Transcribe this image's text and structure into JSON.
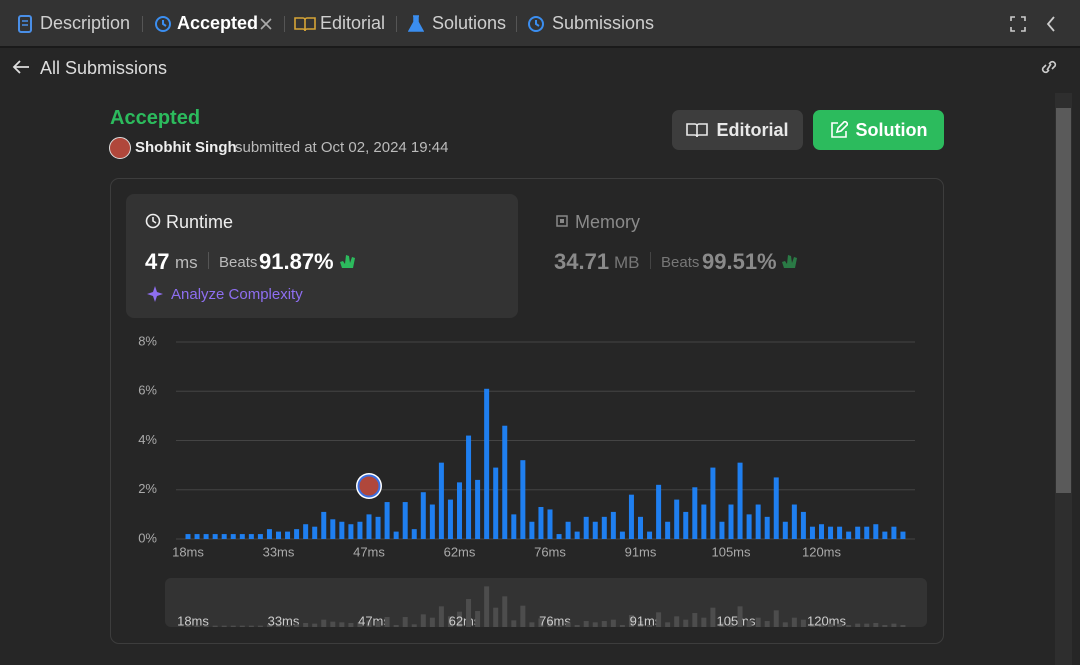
{
  "tabs": [
    "Description",
    "Accepted",
    "Editorial",
    "Solutions",
    "Submissions"
  ],
  "back_link": "All Submissions",
  "submission": {
    "status": "Accepted",
    "user": "Shobhit Singh",
    "submitted_text": "submitted at Oct 02, 2024 19:44"
  },
  "buttons": [
    "Editorial",
    "Solution"
  ],
  "runtime": {
    "label": "Runtime",
    "value": "47",
    "unit": "ms",
    "beats_label": "Beats",
    "beats": "91.87%",
    "analyze": "Analyze Complexity"
  },
  "memory": {
    "label": "Memory",
    "value": "34.71",
    "unit": "MB",
    "beats_label": "Beats",
    "beats": "99.51%"
  },
  "chart_data": {
    "type": "bar",
    "color": "#1f7ff0",
    "grid": true,
    "categories": [
      "18ms",
      null,
      null,
      null,
      null,
      null,
      null,
      null,
      null,
      null,
      "33ms",
      null,
      null,
      null,
      null,
      null,
      null,
      null,
      null,
      null,
      "47ms",
      null,
      null,
      null,
      null,
      null,
      null,
      null,
      null,
      null,
      "62ms",
      null,
      null,
      null,
      null,
      null,
      null,
      null,
      null,
      null,
      "76ms",
      null,
      null,
      null,
      null,
      null,
      null,
      null,
      null,
      null,
      "91ms",
      null,
      null,
      null,
      null,
      null,
      null,
      null,
      null,
      null,
      "105ms",
      null,
      null,
      null,
      null,
      null,
      null,
      null,
      null,
      null,
      "120ms",
      null,
      null,
      null,
      null,
      null,
      null,
      null,
      null,
      null
    ],
    "values": [
      0.2,
      0.2,
      0.2,
      0.2,
      0.2,
      0.2,
      0.2,
      0.2,
      0.2,
      0.4,
      0.3,
      0.3,
      0.4,
      0.6,
      0.5,
      1.1,
      0.8,
      0.7,
      0.6,
      0.7,
      1.0,
      0.9,
      1.5,
      0.3,
      1.5,
      0.4,
      1.9,
      1.4,
      3.1,
      1.6,
      2.3,
      4.2,
      2.4,
      6.1,
      2.9,
      4.6,
      1.0,
      3.2,
      0.7,
      1.3,
      1.2,
      0.2,
      0.7,
      0.3,
      0.9,
      0.7,
      0.9,
      1.1,
      0.3,
      1.8,
      0.9,
      0.3,
      2.2,
      0.7,
      1.6,
      1.1,
      2.1,
      1.4,
      2.9,
      0.7,
      1.4,
      3.1,
      1.0,
      1.4,
      0.9,
      2.5,
      0.7,
      1.4,
      1.1,
      0.5,
      0.6,
      0.5,
      0.5,
      0.3,
      0.5,
      0.5,
      0.6,
      0.3,
      0.5,
      0.3
    ],
    "ylim": [
      0,
      8
    ],
    "yticks": [
      {
        "value": 0,
        "label": "0%"
      },
      {
        "value": 2,
        "label": "2%"
      },
      {
        "value": 4,
        "label": "4%"
      },
      {
        "value": 6,
        "label": "6%"
      },
      {
        "value": 8,
        "label": "8%"
      }
    ]
  }
}
